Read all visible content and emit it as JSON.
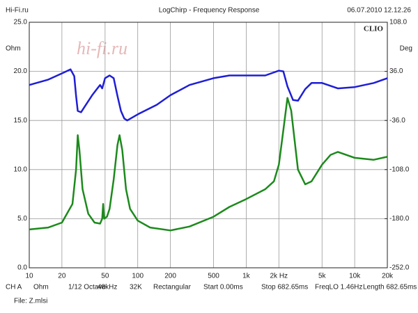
{
  "header": {
    "left": "Hi-Fi.ru",
    "center": "LogChirp - Frequency Response",
    "right": "06.07.2010 12.12.26"
  },
  "brand": "CLIO",
  "watermark": "hi-fi.ru",
  "footer": {
    "settings": [
      "CH A",
      "Ohm",
      "1/12 Octave",
      "48kHz",
      "32K",
      "Rectangular",
      "Start 0.00ms",
      "Stop 682.65ms",
      "FreqLO 1.46Hz",
      "Length 682.65ms"
    ],
    "file": "File: Z.mlsi"
  },
  "chart_data": {
    "type": "line",
    "ylabel": "Ohm",
    "y2label": "Deg",
    "log_x": true,
    "grid": true,
    "xlim": [
      10,
      20000
    ],
    "xticks": [
      10,
      20,
      50,
      100,
      200,
      500,
      {
        "value": 1000,
        "label": "1k"
      },
      {
        "value": 2000,
        "label": "2k Hz"
      },
      {
        "value": 5000,
        "label": "5k"
      },
      {
        "value": 10000,
        "label": "10k"
      },
      {
        "value": 20000,
        "label": "20k"
      }
    ],
    "ylim": [
      0,
      25
    ],
    "yticks": [
      {
        "value": 0,
        "label": "0.0"
      },
      {
        "value": 5,
        "label": "5.0"
      },
      {
        "value": 10,
        "label": "10.0"
      },
      {
        "value": 15,
        "label": "15.0"
      },
      {
        "value": 20,
        "label": "20.0"
      },
      {
        "value": 25,
        "label": "25.0"
      }
    ],
    "y2lim": [
      -252,
      108
    ],
    "y2ticks": [
      {
        "value": -252,
        "label": "-252.0"
      },
      {
        "value": -180,
        "label": "-180.0"
      },
      {
        "value": -108,
        "label": "-108.0"
      },
      {
        "value": -36,
        "label": "-36.0"
      },
      {
        "value": 36,
        "label": "36.0"
      },
      {
        "value": 108,
        "label": "108.0"
      }
    ],
    "series": [
      {
        "color": "#1c8a1c",
        "axis": "y",
        "x": [
          10,
          15,
          20,
          25,
          27,
          28,
          29,
          31,
          35,
          40,
          45,
          47,
          48,
          49,
          52,
          55,
          60,
          65,
          68,
          72,
          78,
          85,
          100,
          130,
          200,
          300,
          500,
          700,
          1000,
          1500,
          1800,
          2000,
          2200,
          2400,
          2600,
          3000,
          3500,
          4000,
          5000,
          6000,
          7000,
          10000,
          15000,
          20000
        ],
        "values": [
          3.9,
          4.1,
          4.6,
          6.5,
          10,
          13.5,
          12,
          8,
          5.5,
          4.6,
          4.5,
          5,
          6.5,
          5,
          5.2,
          6,
          9,
          12.5,
          13.5,
          12,
          8,
          6,
          4.8,
          4.1,
          3.8,
          4.2,
          5.2,
          6.2,
          7,
          8,
          8.8,
          10.5,
          14,
          17.3,
          16,
          10,
          8.5,
          8.8,
          10.5,
          11.5,
          11.8,
          11.2,
          11,
          11.3
        ]
      },
      {
        "color": "#1e1ed6",
        "axis": "y2",
        "x": [
          10,
          15,
          20,
          24,
          26,
          27,
          28,
          30,
          33,
          38,
          42,
          45,
          47,
          50,
          55,
          60,
          65,
          70,
          75,
          80,
          100,
          150,
          200,
          300,
          500,
          700,
          1000,
          1500,
          2000,
          2200,
          2400,
          2700,
          3000,
          3500,
          4000,
          5000,
          7000,
          10000,
          15000,
          20000
        ],
        "values": [
          16,
          24,
          33,
          39,
          29,
          0,
          -22,
          -24,
          -14,
          1,
          10,
          16,
          11,
          26,
          30,
          26,
          0,
          -22,
          -33,
          -36,
          -27,
          -13,
          1,
          16,
          26,
          30,
          30,
          30,
          37,
          36,
          14,
          -6,
          -7,
          10,
          19,
          19,
          11,
          13,
          19,
          26
        ]
      }
    ]
  }
}
